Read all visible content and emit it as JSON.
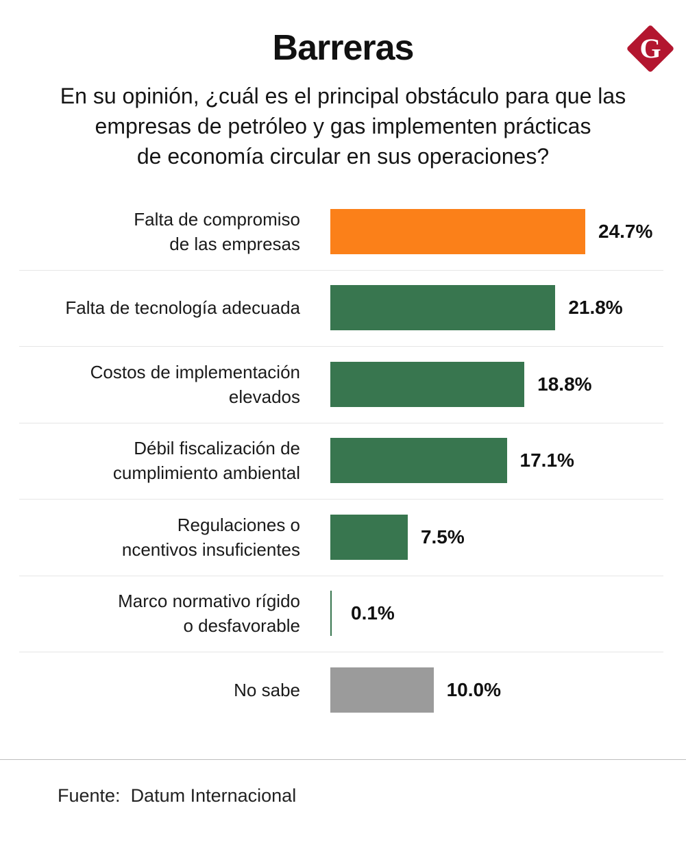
{
  "header": {
    "title": "Barreras",
    "subtitle_lines": [
      "En su opinión, ¿cuál es el principal obstáculo para que las",
      "empresas de petróleo y gas implementen prácticas",
      "de economía circular en sus operaciones?"
    ],
    "logo_letter": "G"
  },
  "colors": {
    "highlight": "#fb8019",
    "default": "#38764f",
    "neutral": "#9b9b9b",
    "logo": "#b3162f"
  },
  "chart_data": {
    "type": "bar",
    "orientation": "horizontal",
    "title": "Barreras",
    "subtitle": "En su opinión, ¿cuál es el principal obstáculo para que las empresas de petróleo y gas implementen prácticas de economía circular en sus operaciones?",
    "xlim": [
      0,
      24.7
    ],
    "categories": [
      [
        "Falta de compromiso",
        "de las empresas"
      ],
      [
        "Falta de tecnología adecuada"
      ],
      [
        "Costos de implementación",
        "elevados"
      ],
      [
        "Débil fiscalización de",
        "cumplimiento ambiental"
      ],
      [
        "Regulaciones o",
        "ncentivos insuficientes"
      ],
      [
        "Marco normativo rígido",
        "o desfavorable"
      ],
      [
        "No sabe"
      ]
    ],
    "values": [
      24.7,
      21.8,
      18.8,
      17.1,
      7.5,
      0.1,
      10.0
    ],
    "value_labels": [
      "24.7%",
      "21.8%",
      "18.8%",
      "17.1%",
      "7.5%",
      "0.1%",
      "10.0%"
    ],
    "color_roles": [
      "highlight",
      "default",
      "default",
      "default",
      "default",
      "default",
      "neutral"
    ]
  },
  "footer": {
    "source": "Fuente:  Datum Internacional"
  }
}
